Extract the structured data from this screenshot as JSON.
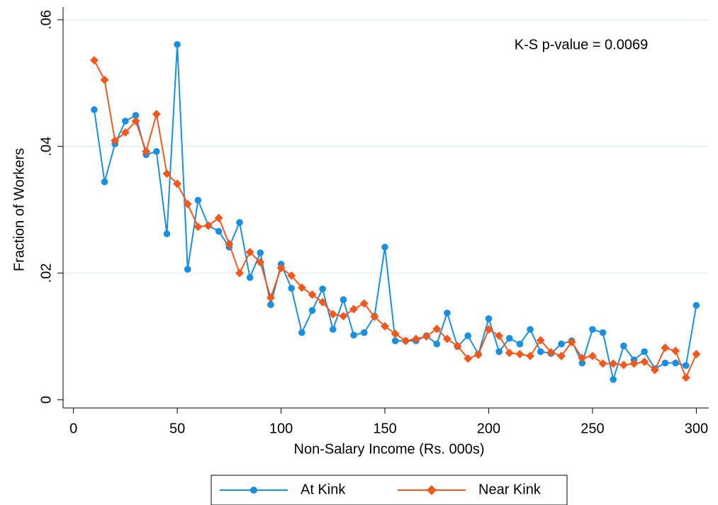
{
  "chart_data": {
    "type": "line",
    "xlabel": "Non-Salary Income (Rs. 000s)",
    "ylabel": "Fraction of Workers",
    "annotation": "K-S p-value = 0.0069",
    "x": [
      10,
      15,
      20,
      25,
      30,
      35,
      40,
      45,
      50,
      55,
      60,
      65,
      70,
      75,
      80,
      85,
      90,
      95,
      100,
      105,
      110,
      115,
      120,
      125,
      130,
      135,
      140,
      145,
      150,
      155,
      160,
      165,
      170,
      175,
      180,
      185,
      190,
      195,
      200,
      205,
      210,
      215,
      220,
      225,
      230,
      235,
      240,
      245,
      250,
      255,
      260,
      265,
      270,
      275,
      280,
      285,
      290,
      295,
      300
    ],
    "series": [
      {
        "name": "At Kink",
        "color": "#1a8ee0",
        "marker": "circle",
        "values": [
          0.0458,
          0.0344,
          0.0404,
          0.044,
          0.0449,
          0.0387,
          0.0392,
          0.0262,
          0.0561,
          0.0206,
          0.0315,
          0.0275,
          0.0266,
          0.0241,
          0.028,
          0.0193,
          0.0232,
          0.015,
          0.0214,
          0.0176,
          0.0106,
          0.0141,
          0.0175,
          0.0111,
          0.0158,
          0.0102,
          0.0106,
          0.0132,
          0.0241,
          0.0093,
          0.0093,
          0.0093,
          0.0101,
          0.0088,
          0.0137,
          0.0084,
          0.0101,
          0.0072,
          0.0128,
          0.0076,
          0.0097,
          0.0088,
          0.0111,
          0.0076,
          0.0073,
          0.0088,
          0.0093,
          0.0058,
          0.0111,
          0.0106,
          0.0032,
          0.0085,
          0.0063,
          0.0076,
          0.0049,
          0.0058,
          0.0058,
          0.0054,
          0.0149
        ]
      },
      {
        "name": "Near Kink",
        "color": "#f2571c",
        "marker": "diamond",
        "values": [
          0.0536,
          0.0505,
          0.0409,
          0.0422,
          0.044,
          0.0392,
          0.0451,
          0.0357,
          0.0341,
          0.0309,
          0.0273,
          0.0275,
          0.0287,
          0.0246,
          0.02,
          0.0233,
          0.0217,
          0.0161,
          0.0208,
          0.0196,
          0.0177,
          0.0166,
          0.0154,
          0.0135,
          0.0132,
          0.0143,
          0.0152,
          0.0131,
          0.0116,
          0.0104,
          0.0093,
          0.0096,
          0.01,
          0.0112,
          0.0096,
          0.0085,
          0.0065,
          0.0071,
          0.0111,
          0.0101,
          0.0074,
          0.0072,
          0.0069,
          0.0094,
          0.0075,
          0.0069,
          0.0091,
          0.0066,
          0.0069,
          0.0057,
          0.0057,
          0.0055,
          0.0057,
          0.006,
          0.0047,
          0.0082,
          0.0077,
          0.0035,
          0.0072
        ]
      }
    ],
    "xlim": [
      -5,
      306
    ],
    "ylim": [
      -0.0013,
      0.062
    ],
    "xticks": [
      0,
      50,
      100,
      150,
      200,
      250,
      300
    ],
    "yticks": [
      0,
      {
        "value": 0.02,
        "label": ".02"
      },
      {
        "value": 0.04,
        "label": ".04"
      },
      {
        "value": 0.06,
        "label": ".06"
      }
    ],
    "grid": true,
    "grid_color": "#e4eef0",
    "legend": "bottom"
  }
}
